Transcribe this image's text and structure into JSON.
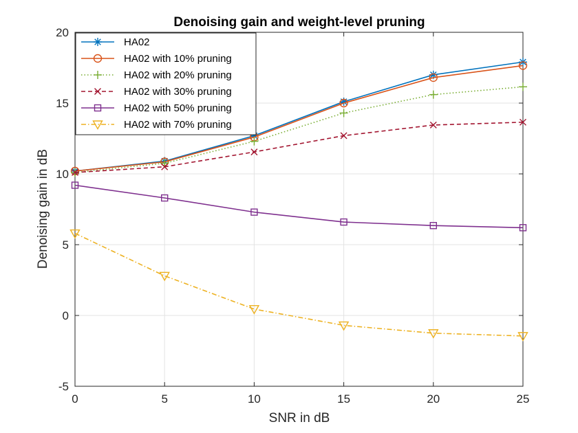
{
  "chart_data": {
    "type": "line",
    "title": "Denoising gain and weight-level pruning",
    "xlabel": "SNR in dB",
    "ylabel": "Denoising gain in dB",
    "xlim": [
      0,
      25
    ],
    "ylim": [
      -5,
      20
    ],
    "xticks": [
      0,
      5,
      10,
      15,
      20,
      25
    ],
    "yticks": [
      -5,
      0,
      5,
      10,
      15,
      20
    ],
    "grid": true,
    "legend_position": "top-left",
    "x": [
      0,
      5,
      10,
      15,
      20,
      25
    ],
    "series": [
      {
        "name": "HA02",
        "color": "#0072BD",
        "marker": "star",
        "dash": "solid",
        "values": [
          10.2,
          10.9,
          12.7,
          15.1,
          17.0,
          17.9
        ]
      },
      {
        "name": "HA02 with 10% pruning",
        "color": "#D95319",
        "marker": "circle",
        "dash": "solid",
        "values": [
          10.2,
          10.85,
          12.6,
          15.0,
          16.8,
          17.65
        ]
      },
      {
        "name": "HA02 with 20% pruning",
        "color": "#77AC30",
        "marker": "plus",
        "dash": "dotted",
        "values": [
          10.1,
          10.75,
          12.3,
          14.3,
          15.6,
          16.15
        ]
      },
      {
        "name": "HA02 with 30% pruning",
        "color": "#A2142F",
        "marker": "x",
        "dash": "dashed",
        "values": [
          10.1,
          10.5,
          11.55,
          12.7,
          13.45,
          13.65
        ]
      },
      {
        "name": "HA02 with 50% pruning",
        "color": "#7E2F8E",
        "marker": "square",
        "dash": "solid",
        "values": [
          9.2,
          8.3,
          7.3,
          6.6,
          6.35,
          6.2
        ]
      },
      {
        "name": "HA02 with 70% pruning",
        "color": "#EDB120",
        "marker": "triangle-down",
        "dash": "dashdot",
        "values": [
          5.8,
          2.8,
          0.45,
          -0.7,
          -1.25,
          -1.45
        ]
      }
    ]
  }
}
